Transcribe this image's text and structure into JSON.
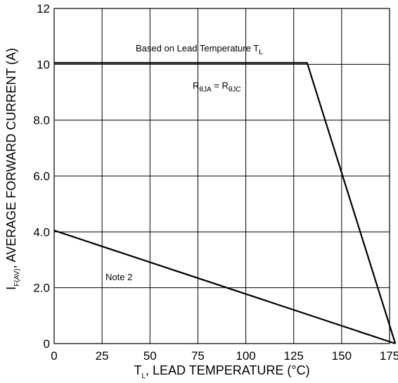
{
  "chart_data": {
    "type": "line",
    "xlabel": {
      "main": "T",
      "sub": "L",
      "rest": ", LEAD TEMPERATURE (°C)"
    },
    "ylabel": {
      "main": "I",
      "sub": "F(AV)",
      "rest": ", AVERAGE FORWARD CURRENT (A)"
    },
    "xlim": [
      0,
      175
    ],
    "ylim": [
      0,
      12
    ],
    "x_ticks": [
      0,
      25,
      50,
      75,
      100,
      125,
      150,
      175
    ],
    "x_tick_labels": [
      "0",
      "25",
      "50",
      "75",
      "100",
      "125",
      "150",
      "175"
    ],
    "y_ticks": [
      0,
      2,
      4,
      6,
      8,
      10,
      12
    ],
    "y_tick_labels": [
      "0",
      "2.0",
      "4.0",
      "6.0",
      "8.0",
      "10",
      "12"
    ],
    "grid": true,
    "series": [
      {
        "x": [
          0,
          132,
          178
        ],
        "y": [
          10.05,
          10.05,
          0
        ]
      },
      {
        "x": [
          0,
          178
        ],
        "y": [
          4.05,
          0
        ]
      }
    ],
    "annotations": {
      "lead_temp": {
        "text": "Based on Lead Temperature T",
        "sub": "L"
      },
      "rtheta": {
        "main1": "R",
        "sub1": "θJA",
        "mid": " = R",
        "sub2": "θJC"
      },
      "note2": {
        "text": "Note 2"
      }
    },
    "colors": {
      "line": "#000000",
      "grid": "#000000",
      "background": "#ffffff"
    }
  }
}
